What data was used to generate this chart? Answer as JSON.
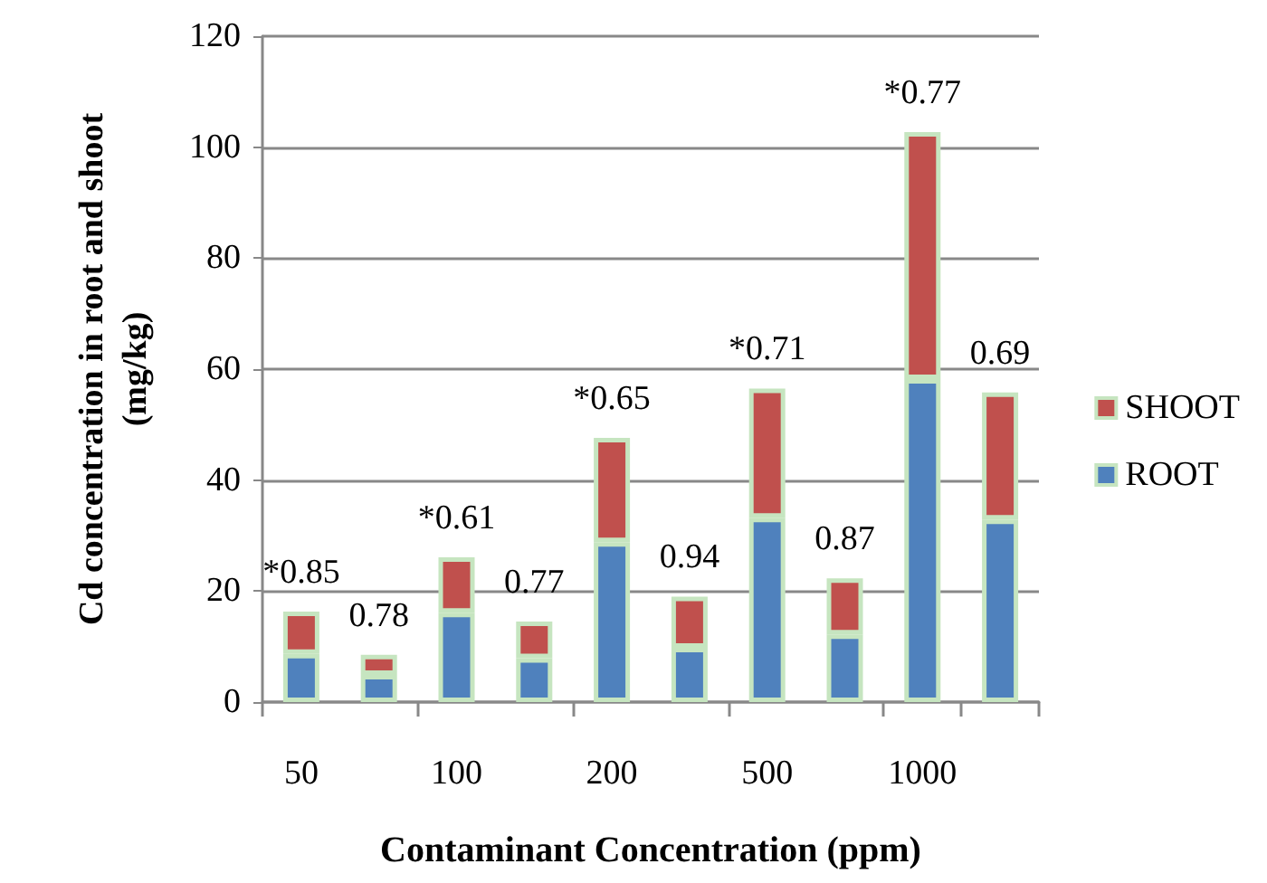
{
  "chart_data": {
    "type": "bar",
    "stacked": true,
    "xlabel": "Contaminant Concentration (ppm)",
    "ylabel": "Cd concentration in root and shoot\n(mg/kg)",
    "categories": [
      "50",
      null,
      "100",
      null,
      "200",
      null,
      "500",
      null,
      "1000",
      null
    ],
    "series": [
      {
        "name": "ROOT",
        "color": "#4f81bd",
        "values": [
          8.7,
          4.9,
          16.1,
          7.9,
          28.8,
          9.8,
          33.2,
          12.2,
          58.2,
          32.9
        ]
      },
      {
        "name": "SHOOT",
        "color": "#c0504d",
        "values": [
          7.6,
          3.6,
          10.0,
          6.6,
          18.8,
          9.2,
          23.3,
          10.1,
          44.5,
          22.9
        ]
      }
    ],
    "annotations": [
      {
        "text": "*0.85",
        "x": "50",
        "y": 16.3
      },
      {
        "text": "0.78",
        "y": 8.5
      },
      {
        "text": "*0.61",
        "x": "100",
        "y": 26.1
      },
      {
        "text": "0.77",
        "y": 14.5
      },
      {
        "text": "*0.65",
        "x": "200",
        "y": 47.6
      },
      {
        "text": "0.94",
        "y": 19.0
      },
      {
        "text": "*0.71",
        "x": "500",
        "y": 56.5
      },
      {
        "text": "0.87",
        "y": 22.3
      },
      {
        "text": "*0.77",
        "x": "1000",
        "y": 102.7
      },
      {
        "text": "0.69",
        "y": 55.8
      }
    ],
    "ylim": [
      0,
      120
    ],
    "yticks": [
      0,
      20,
      40,
      60,
      80,
      100,
      120
    ],
    "grid": "y",
    "legend": "right"
  }
}
